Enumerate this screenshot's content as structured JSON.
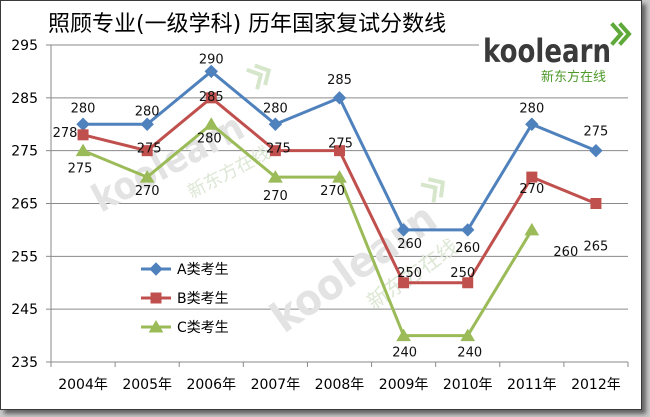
{
  "chart_data": {
    "type": "line",
    "title": "照顾专业(一级学科) 历年国家复试分数线",
    "categories": [
      "2004年",
      "2005年",
      "2006年",
      "2007年",
      "2008年",
      "2009年",
      "2010年",
      "2011年",
      "2012年"
    ],
    "series": [
      {
        "name": "A类考生",
        "values": [
          280,
          280,
          290,
          280,
          285,
          260,
          260,
          280,
          275
        ],
        "color": "#4F81BD",
        "marker_shape": "diamond"
      },
      {
        "name": "B类考生",
        "values": [
          278,
          275,
          285,
          275,
          275,
          250,
          250,
          270,
          265
        ],
        "color": "#C0504D",
        "marker_shape": "square"
      },
      {
        "name": "C类考生",
        "values": [
          275,
          270,
          280,
          270,
          270,
          240,
          240,
          260,
          null
        ],
        "color": "#9BBB59",
        "marker_shape": "triangle"
      }
    ],
    "ylim": [
      235,
      295
    ],
    "y_ticks": [
      235,
      245,
      255,
      265,
      275,
      285,
      295
    ],
    "grid": true,
    "data_labels": true,
    "legend_position": "inside-lower-left"
  },
  "logo": {
    "wordmark": "koolearn",
    "tagline": "新东方在线",
    "color": "#5FA83A"
  }
}
